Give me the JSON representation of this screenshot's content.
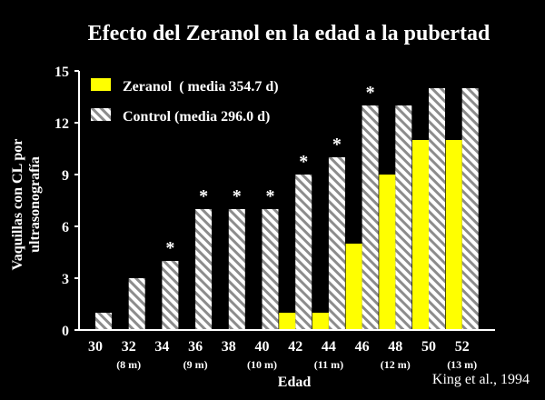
{
  "chart_data": {
    "type": "bar",
    "title": "Efecto del Zeranol en la edad a la pubertad",
    "xlabel": "Edad",
    "ylabel": [
      "Vaquillas con CL por",
      "ultrasonografía"
    ],
    "categories": [
      "30",
      "32",
      "34",
      "36",
      "38",
      "40",
      "42",
      "44",
      "46",
      "48",
      "50",
      "52"
    ],
    "month_labels": [
      "",
      "(8 m)",
      "",
      "(9 m)",
      "",
      "(10 m)",
      "",
      "(11 m)",
      "",
      "(12 m)",
      "",
      "(13 m)"
    ],
    "ylim": [
      0,
      15
    ],
    "yticks": [
      0,
      3,
      6,
      9,
      12,
      15
    ],
    "series": [
      {
        "name": "Zeranol  ( media 354.7 d)",
        "values": [
          0,
          0,
          0,
          0,
          0,
          0,
          1,
          1,
          5,
          9,
          11,
          11
        ],
        "color": "#ffff00",
        "pattern": "solid"
      },
      {
        "name": "Control (media 296.0 d)",
        "values": [
          1,
          3,
          4,
          7,
          7,
          7,
          9,
          10,
          13,
          13,
          14,
          14
        ],
        "color": "#ffffff",
        "pattern": "diagonal-hatch"
      }
    ],
    "significance_marker": "*",
    "significant_categories": [
      "34",
      "36",
      "38",
      "40",
      "42",
      "44",
      "46"
    ],
    "legend_position": "top-left",
    "grid": false,
    "source": "King et al., 1994"
  }
}
